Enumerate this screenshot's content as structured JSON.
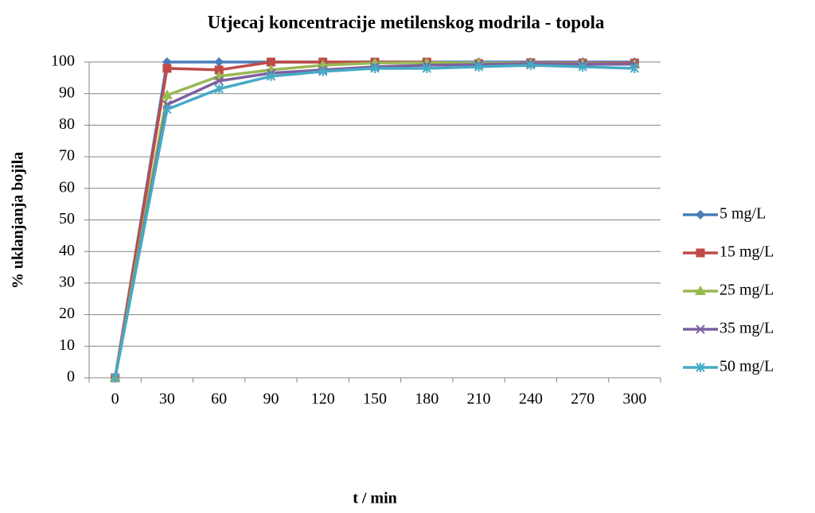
{
  "chart_data": {
    "type": "line",
    "title": "Utjecaj koncentracije metilenskog modrila - topola",
    "x_label": "t / min",
    "y_label": "%  uklanjanja bojila",
    "categories": [
      0,
      30,
      60,
      90,
      120,
      150,
      180,
      210,
      240,
      270,
      300
    ],
    "ylim": [
      0,
      100
    ],
    "yticks": [
      0,
      10,
      20,
      30,
      40,
      50,
      60,
      70,
      80,
      90,
      100
    ],
    "grid": true,
    "legend": "right",
    "series": [
      {
        "name": "5 mg/L",
        "color": "#4a7ebb",
        "marker": "diamond",
        "values": [
          0,
          100,
          100,
          100,
          100,
          100,
          100,
          100,
          100,
          100,
          100
        ]
      },
      {
        "name": "15 mg/L",
        "color": "#be4b48",
        "marker": "square",
        "values": [
          0,
          98,
          97.5,
          100,
          100,
          100,
          100,
          99.5,
          99.8,
          99.7,
          99.7
        ]
      },
      {
        "name": "25 mg/L",
        "color": "#98b954",
        "marker": "triangle",
        "values": [
          0,
          89.5,
          95.5,
          97.5,
          99,
          99.7,
          99.8,
          99.7,
          99.6,
          99.5,
          99.3
        ]
      },
      {
        "name": "35 mg/L",
        "color": "#7d60a0",
        "marker": "x",
        "values": [
          0,
          86.5,
          94,
          96.5,
          97.5,
          98.5,
          99,
          99.2,
          99.5,
          99.3,
          99.3
        ]
      },
      {
        "name": "50 mg/L",
        "color": "#46aac5",
        "marker": "star",
        "values": [
          0,
          85,
          91.5,
          95.5,
          97,
          98,
          98,
          98.5,
          99,
          98.5,
          98
        ]
      }
    ]
  }
}
